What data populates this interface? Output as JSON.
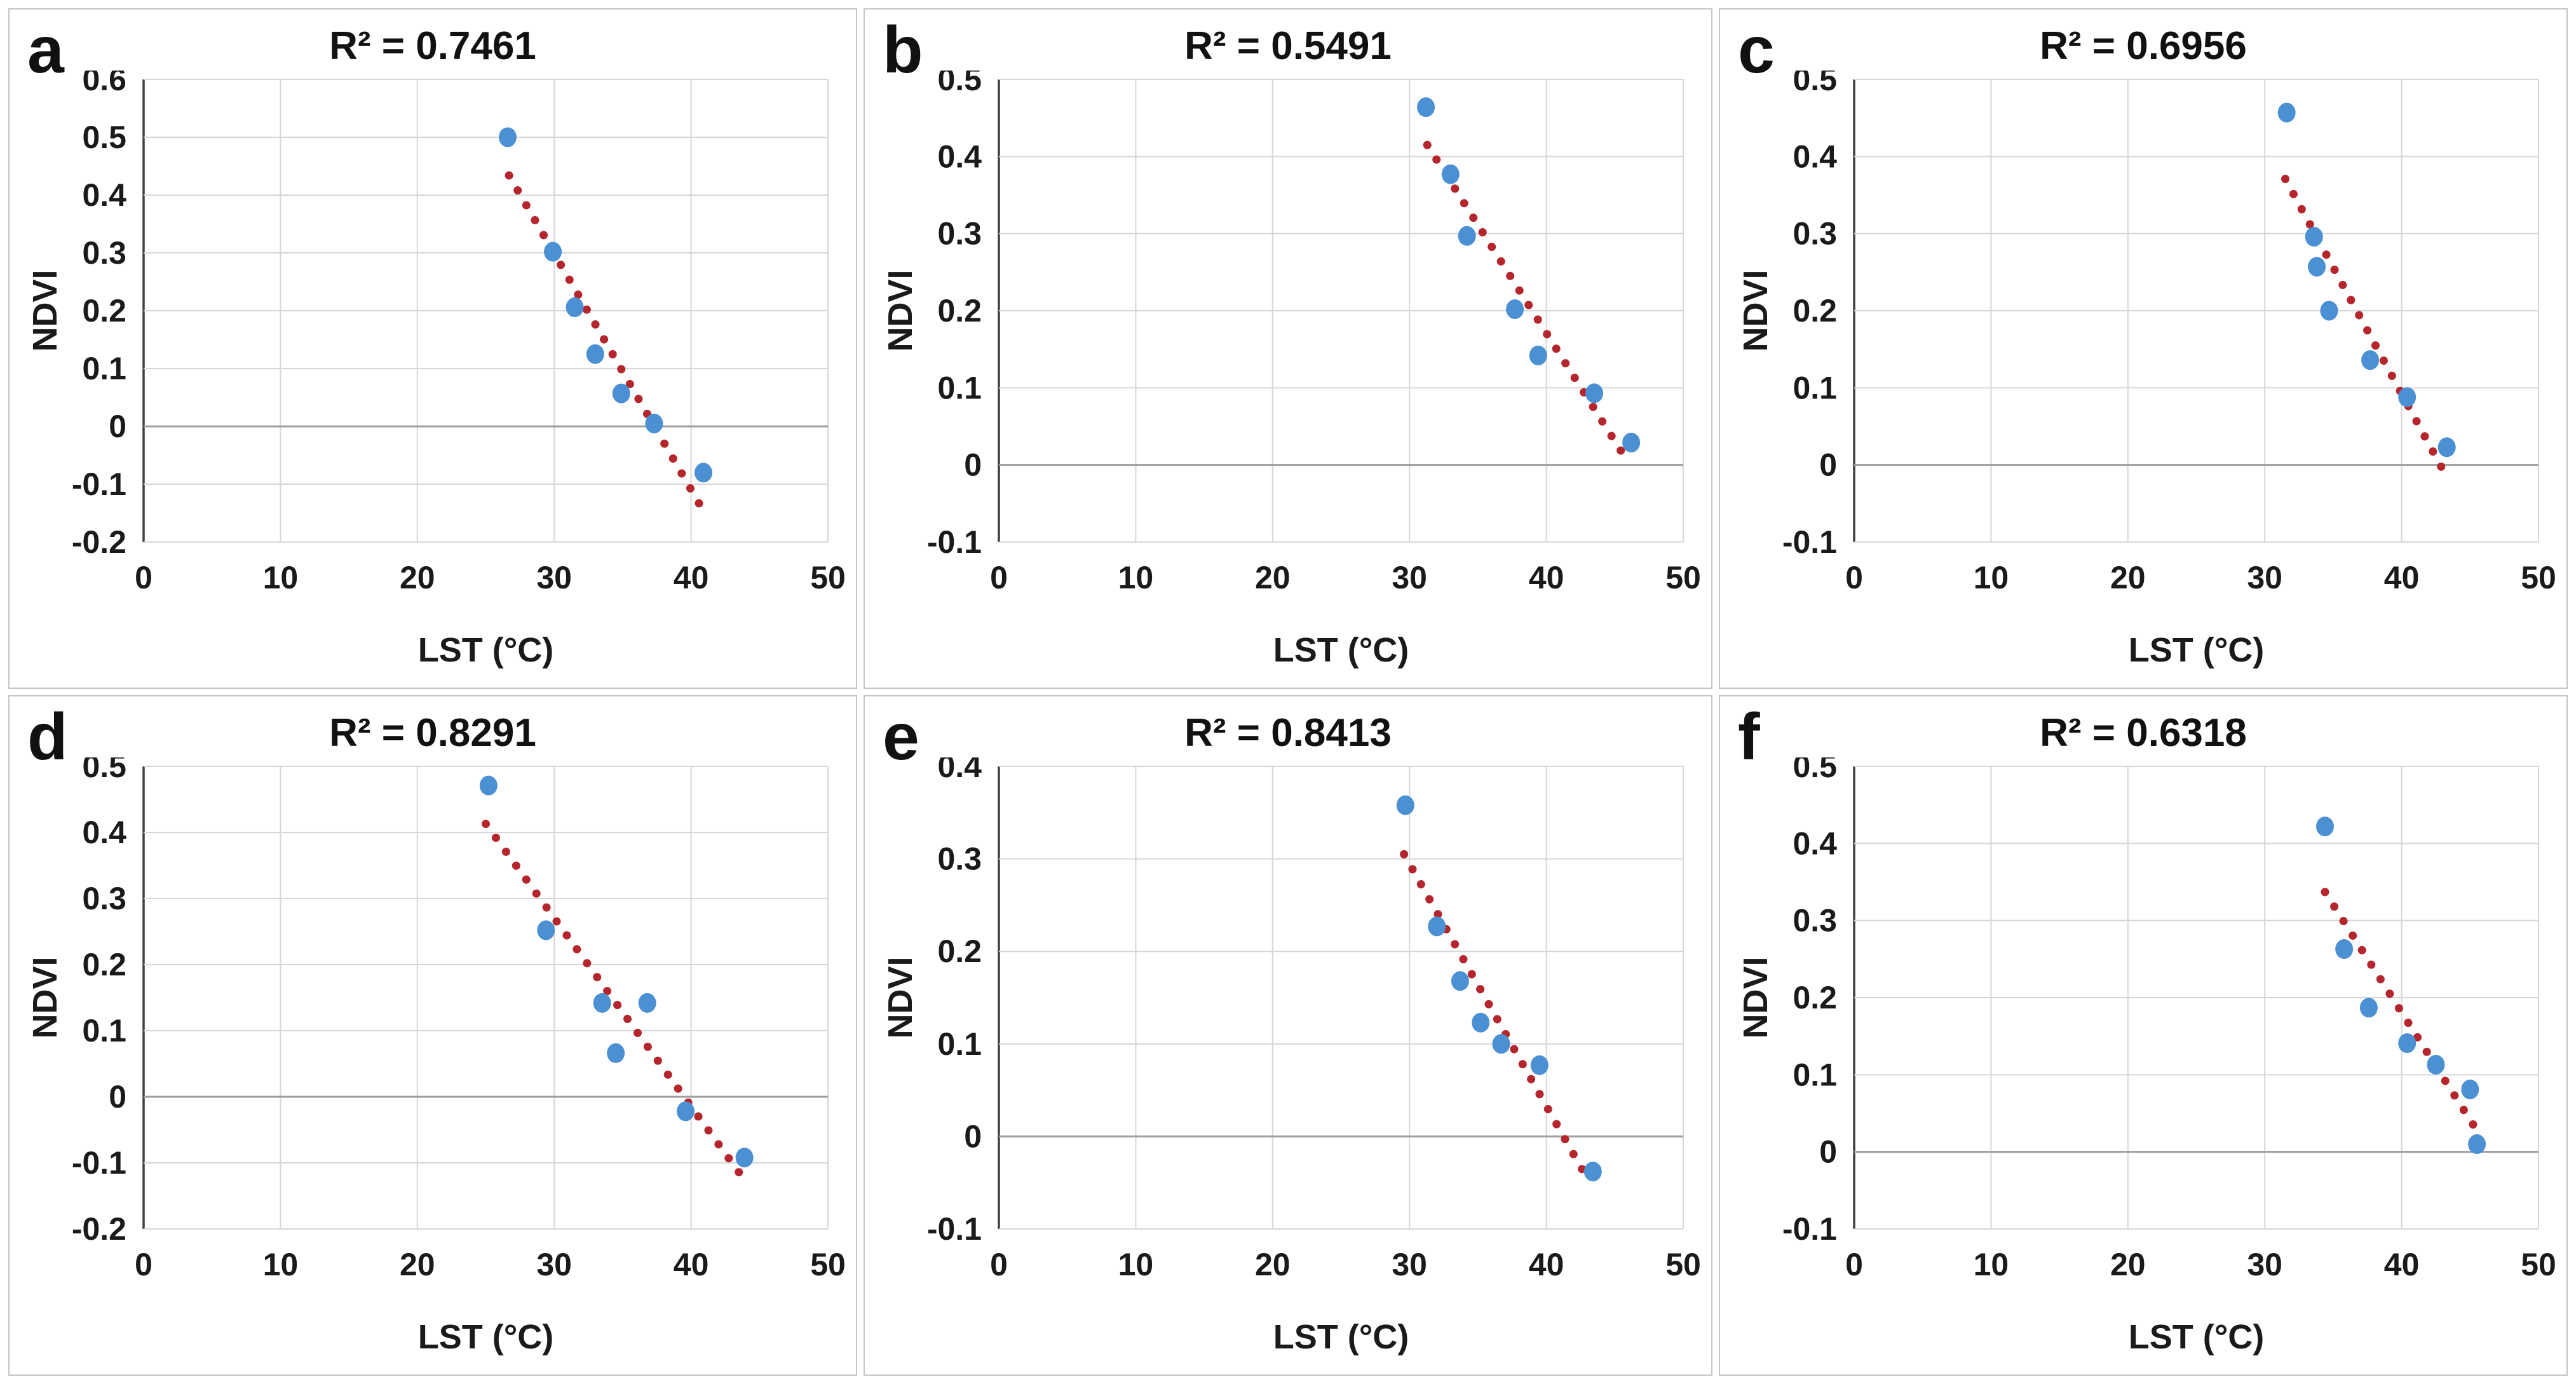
{
  "figure": {
    "description": "Six scatter plots of NDVI versus LST with dotted linear trendlines",
    "rows": 2,
    "cols": 3
  },
  "style": {
    "marker_color": "#4a90d2",
    "trendline_color": "#b4262c",
    "gridline_color": "#d6d6d6",
    "zero_line_color": "#9e9e9e",
    "axis_line_color": "#3f3f3f",
    "text_color": "#1a1a1a",
    "panel_border_color": "#c6c6c6",
    "background_color": "#ffffff"
  },
  "chart_data": [
    {
      "type": "scatter",
      "label": "a",
      "title": "R² = 0.7461",
      "r2": 0.7461,
      "xlabel": "LST (°C)",
      "ylabel": "NDVI",
      "xlim": [
        0,
        50
      ],
      "ylim": [
        -0.2,
        0.6
      ],
      "xticks": [
        0,
        10,
        20,
        30,
        40,
        50
      ],
      "yticks": [
        0.6,
        0.5,
        0.4,
        0.3,
        0.2,
        0.1,
        0,
        -0.1,
        -0.2
      ],
      "points": [
        [
          26.6,
          0.5
        ],
        [
          29.9,
          0.302
        ],
        [
          31.5,
          0.206
        ],
        [
          33.0,
          0.125
        ],
        [
          34.9,
          0.057
        ],
        [
          37.3,
          0.005
        ],
        [
          40.9,
          -0.08
        ]
      ],
      "trendline": {
        "style": "dotted",
        "x": [
          26.7,
          40.7
        ],
        "y": [
          0.434,
          -0.138
        ]
      }
    },
    {
      "type": "scatter",
      "label": "b",
      "title": "R² = 0.5491",
      "r2": 0.5491,
      "xlabel": "LST (°C)",
      "ylabel": "NDVI",
      "xlim": [
        0,
        50
      ],
      "ylim": [
        -0.1,
        0.5
      ],
      "xticks": [
        0,
        10,
        20,
        30,
        40,
        50
      ],
      "yticks": [
        0.5,
        0.4,
        0.3,
        0.2,
        0.1,
        0,
        -0.1
      ],
      "points": [
        [
          31.2,
          0.464
        ],
        [
          33.0,
          0.377
        ],
        [
          34.2,
          0.297
        ],
        [
          37.7,
          0.202
        ],
        [
          39.4,
          0.142
        ],
        [
          43.5,
          0.093
        ],
        [
          46.2,
          0.029
        ]
      ],
      "trendline": {
        "style": "dotted",
        "x": [
          31.3,
          46.1
        ],
        "y": [
          0.415,
          0.0
        ]
      }
    },
    {
      "type": "scatter",
      "label": "c",
      "title": "R² = 0.6956",
      "r2": 0.6956,
      "xlabel": "LST (°C)",
      "ylabel": "NDVI",
      "xlim": [
        0,
        50
      ],
      "ylim": [
        -0.1,
        0.5
      ],
      "xticks": [
        0,
        10,
        20,
        30,
        40,
        50
      ],
      "yticks": [
        0.5,
        0.4,
        0.3,
        0.2,
        0.1,
        0,
        -0.1
      ],
      "points": [
        [
          31.6,
          0.457
        ],
        [
          33.6,
          0.296
        ],
        [
          33.8,
          0.257
        ],
        [
          34.7,
          0.2
        ],
        [
          37.7,
          0.136
        ],
        [
          40.4,
          0.088
        ],
        [
          43.3,
          0.023
        ]
      ],
      "trendline": {
        "style": "dotted",
        "x": [
          31.5,
          43.0
        ],
        "y": [
          0.371,
          -0.006
        ]
      }
    },
    {
      "type": "scatter",
      "label": "d",
      "title": "R² = 0.8291",
      "r2": 0.8291,
      "xlabel": "LST (°C)",
      "ylabel": "NDVI",
      "xlim": [
        0,
        50
      ],
      "ylim": [
        -0.2,
        0.5
      ],
      "xticks": [
        0,
        10,
        20,
        30,
        40,
        50
      ],
      "yticks": [
        0.5,
        0.4,
        0.3,
        0.2,
        0.1,
        0,
        -0.1,
        -0.2
      ],
      "points": [
        [
          25.2,
          0.471
        ],
        [
          29.4,
          0.252
        ],
        [
          33.5,
          0.142
        ],
        [
          34.5,
          0.066
        ],
        [
          36.8,
          0.142
        ],
        [
          39.6,
          -0.022
        ],
        [
          43.9,
          -0.092
        ]
      ],
      "trendline": {
        "style": "dotted",
        "x": [
          25.0,
          43.8
        ],
        "y": [
          0.413,
          -0.123
        ]
      }
    },
    {
      "type": "scatter",
      "label": "e",
      "title": "R² = 0.8413",
      "r2": 0.8413,
      "xlabel": "LST (°C)",
      "ylabel": "NDVI",
      "xlim": [
        0,
        50
      ],
      "ylim": [
        -0.1,
        0.4
      ],
      "xticks": [
        0,
        10,
        20,
        30,
        40,
        50
      ],
      "yticks": [
        0.4,
        0.3,
        0.2,
        0.1,
        0,
        -0.1
      ],
      "points": [
        [
          29.7,
          0.358
        ],
        [
          32.0,
          0.227
        ],
        [
          33.7,
          0.168
        ],
        [
          35.2,
          0.123
        ],
        [
          36.7,
          0.1
        ],
        [
          39.5,
          0.077
        ],
        [
          43.4,
          -0.038
        ]
      ],
      "trendline": {
        "style": "dotted",
        "x": [
          29.6,
          43.2
        ],
        "y": [
          0.305,
          -0.051
        ]
      }
    },
    {
      "type": "scatter",
      "label": "f",
      "title": "R² = 0.6318",
      "r2": 0.6318,
      "xlabel": "LST (°C)",
      "ylabel": "NDVI",
      "xlim": [
        0,
        50
      ],
      "ylim": [
        -0.1,
        0.5
      ],
      "xticks": [
        0,
        10,
        20,
        30,
        40,
        50
      ],
      "yticks": [
        0.5,
        0.4,
        0.3,
        0.2,
        0.1,
        0,
        -0.1
      ],
      "points": [
        [
          34.4,
          0.422
        ],
        [
          35.8,
          0.263
        ],
        [
          37.6,
          0.187
        ],
        [
          40.4,
          0.141
        ],
        [
          42.5,
          0.113
        ],
        [
          45.0,
          0.081
        ],
        [
          45.5,
          0.01
        ]
      ],
      "trendline": {
        "style": "dotted",
        "x": [
          34.4,
          45.7
        ],
        "y": [
          0.337,
          0.022
        ]
      }
    }
  ]
}
